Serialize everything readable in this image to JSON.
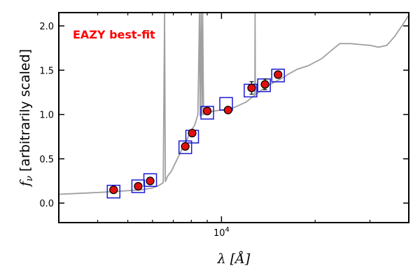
{
  "chart_data": {
    "type": "scatter",
    "title": "",
    "annotation": "EAZY best-fit",
    "xlabel": "λ [Å]",
    "ylabel": "f_ν  [arbitrarily scaled]",
    "ylabel_prefix": "f",
    "ylabel_sub": "ν",
    "ylabel_rest": " [arbitrarily scaled]",
    "xlabel_main": "λ [",
    "xlabel_unit": "Å",
    "xlabel_close": "]",
    "xscale": "log",
    "xlim": [
      3000,
      40000
    ],
    "ylim": [
      -0.22,
      2.15
    ],
    "x_ticklabels": [
      {
        "value": 10000,
        "base": "10",
        "exp": "4"
      }
    ],
    "y_ticks": [
      "0.0",
      "0.5",
      "1.0",
      "1.5",
      "2.0"
    ],
    "colors": {
      "model": "#a0a0a0",
      "observed": "#e01010",
      "model_box": "#1a1ad6",
      "annotation": "#ff0000"
    },
    "series": [
      {
        "role": "model_spectrum",
        "points": [
          [
            3000,
            0.1
          ],
          [
            3500,
            0.11
          ],
          [
            4000,
            0.12
          ],
          [
            4500,
            0.13
          ],
          [
            5000,
            0.14
          ],
          [
            5500,
            0.15
          ],
          [
            6000,
            0.17
          ],
          [
            6300,
            0.2
          ],
          [
            6500,
            0.23
          ],
          [
            6563,
            2.15
          ],
          [
            6600,
            0.24
          ],
          [
            6700,
            0.3
          ],
          [
            6900,
            0.36
          ],
          [
            7100,
            0.45
          ],
          [
            7400,
            0.58
          ],
          [
            7700,
            0.7
          ],
          [
            8000,
            0.82
          ],
          [
            8200,
            0.88
          ],
          [
            8400,
            1.0
          ],
          [
            8500,
            2.15
          ],
          [
            8540,
            0.98
          ],
          [
            8600,
            2.15
          ],
          [
            8660,
            0.99
          ],
          [
            8700,
            2.15
          ],
          [
            8760,
            1.0
          ],
          [
            9000,
            1.02
          ],
          [
            9500,
            1.04
          ],
          [
            10000,
            1.05
          ],
          [
            11000,
            1.08
          ],
          [
            12000,
            1.14
          ],
          [
            12800,
            1.22
          ],
          [
            12820,
            2.15
          ],
          [
            12850,
            1.22
          ],
          [
            13500,
            1.28
          ],
          [
            14500,
            1.35
          ],
          [
            15500,
            1.4
          ],
          [
            16500,
            1.46
          ],
          [
            17500,
            1.51
          ],
          [
            19000,
            1.55
          ],
          [
            21000,
            1.63
          ],
          [
            22500,
            1.72
          ],
          [
            24000,
            1.8
          ],
          [
            26000,
            1.8
          ],
          [
            28000,
            1.79
          ],
          [
            30000,
            1.78
          ],
          [
            32000,
            1.76
          ],
          [
            34000,
            1.78
          ],
          [
            36000,
            1.88
          ],
          [
            38000,
            2.0
          ],
          [
            40000,
            2.12
          ]
        ]
      },
      {
        "role": "observed_photometry",
        "points": [
          {
            "x": 4500,
            "y": 0.15,
            "err": 0.015
          },
          {
            "x": 5400,
            "y": 0.19,
            "err": 0.015
          },
          {
            "x": 5900,
            "y": 0.25,
            "err": 0.015
          },
          {
            "x": 7650,
            "y": 0.64,
            "err": 0.02
          },
          {
            "x": 8050,
            "y": 0.79,
            "err": 0.02
          },
          {
            "x": 9000,
            "y": 1.04,
            "err": 0.03
          },
          {
            "x": 10500,
            "y": 1.05,
            "err": 0.02
          },
          {
            "x": 12500,
            "y": 1.3,
            "err": 0.07
          },
          {
            "x": 13800,
            "y": 1.34,
            "err": 0.06
          },
          {
            "x": 15200,
            "y": 1.45,
            "err": 0.04
          }
        ]
      },
      {
        "role": "model_photometry",
        "points": [
          {
            "x": 4500,
            "y": 0.13
          },
          {
            "x": 5400,
            "y": 0.19
          },
          {
            "x": 5900,
            "y": 0.26
          },
          {
            "x": 7650,
            "y": 0.63
          },
          {
            "x": 8050,
            "y": 0.75
          },
          {
            "x": 9000,
            "y": 1.02
          },
          {
            "x": 10350,
            "y": 1.12
          },
          {
            "x": 12400,
            "y": 1.27
          },
          {
            "x": 13700,
            "y": 1.33
          },
          {
            "x": 15200,
            "y": 1.44
          }
        ]
      }
    ]
  }
}
